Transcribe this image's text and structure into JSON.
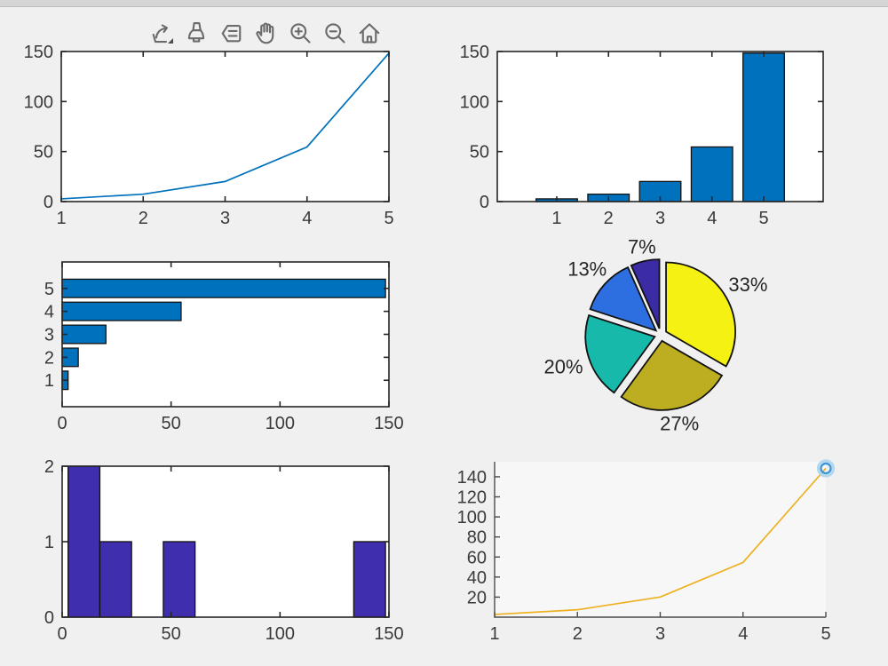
{
  "window": {
    "top_strip_color": "#d5d5d5",
    "background_color": "#f0f0f0"
  },
  "toolbar": {
    "icon_color": "#6b6b6b",
    "icons": [
      {
        "name": "export"
      },
      {
        "name": "brush"
      },
      {
        "name": "datatips"
      },
      {
        "name": "pan"
      },
      {
        "name": "zoom-in"
      },
      {
        "name": "zoom-out"
      },
      {
        "name": "restore-view"
      }
    ]
  },
  "chart_data": [
    {
      "id": "subplot-1",
      "type": "line",
      "x": [
        1,
        2,
        3,
        4,
        5
      ],
      "y": [
        2.72,
        7.39,
        20.09,
        54.6,
        148.41
      ],
      "xlim": [
        1,
        5
      ],
      "ylim": [
        0,
        150
      ],
      "xticks": [
        1,
        2,
        3,
        4,
        5
      ],
      "yticks": [
        0,
        50,
        100,
        150
      ],
      "line_color": "#0072BD",
      "grid": false,
      "box": true
    },
    {
      "id": "subplot-2",
      "type": "bar",
      "categories": [
        1,
        2,
        3,
        4,
        5
      ],
      "values": [
        2.72,
        7.39,
        20.09,
        54.6,
        148.41
      ],
      "xlim": [
        -0.15,
        6.15
      ],
      "ylim": [
        0,
        150
      ],
      "xticks": [
        1,
        2,
        3,
        4,
        5
      ],
      "yticks": [
        0,
        50,
        100,
        150
      ],
      "bar_width": 0.8,
      "bar_color": "#0072BD",
      "edge_color": "#111111",
      "grid": false,
      "box": true
    },
    {
      "id": "subplot-3",
      "type": "barh",
      "categories": [
        1,
        2,
        3,
        4,
        5
      ],
      "values": [
        2.72,
        7.39,
        20.09,
        54.6,
        148.41
      ],
      "xlim": [
        0,
        150
      ],
      "ylim": [
        -0.15,
        6.15
      ],
      "xticks": [
        0,
        50,
        100,
        150
      ],
      "yticks": [
        1,
        2,
        3,
        4,
        5
      ],
      "bar_height": 0.8,
      "bar_color": "#0072BD",
      "edge_color": "#111111",
      "grid": false,
      "box": true
    },
    {
      "id": "subplot-4",
      "type": "pie",
      "values": [
        1,
        2,
        3,
        4,
        5
      ],
      "labels": [
        "7%",
        "13%",
        "20%",
        "27%",
        "33%"
      ],
      "colors": [
        "#3b2ca6",
        "#2d6ee0",
        "#17b9ab",
        "#bcae20",
        "#f5f113"
      ],
      "edge_color": "#111111",
      "start_angle_deg": 90,
      "direction": "counterclockwise",
      "exploded": true
    },
    {
      "id": "subplot-5",
      "type": "histogram",
      "bars": [
        {
          "from": 2.72,
          "to": 17.29,
          "count": 2
        },
        {
          "from": 17.29,
          "to": 31.86,
          "count": 1
        },
        {
          "from": 46.43,
          "to": 61.0,
          "count": 1
        },
        {
          "from": 133.84,
          "to": 148.41,
          "count": 1
        }
      ],
      "xlim": [
        0,
        150
      ],
      "ylim": [
        0,
        2
      ],
      "xticks": [
        0,
        50,
        100,
        150
      ],
      "yticks": [
        0,
        1,
        2
      ],
      "bar_color": "#3f2eae",
      "edge_color": "#111111",
      "grid": false,
      "box": true
    },
    {
      "id": "subplot-6",
      "type": "line",
      "x": [
        1,
        2,
        3,
        4,
        5
      ],
      "y": [
        2.72,
        7.39,
        20.09,
        54.6,
        148.41
      ],
      "xlim": [
        1,
        5
      ],
      "ylim": [
        0,
        155
      ],
      "xticks": [
        1,
        2,
        3,
        4,
        5
      ],
      "yticks": [
        20,
        40,
        60,
        80,
        100,
        120,
        140
      ],
      "line_color": "#EDB120",
      "marker": {
        "x": 5,
        "y": 148.41,
        "shape": "circle",
        "color": "#3d97d6",
        "halo_color": "#b3d7ef"
      },
      "grid": false,
      "box": false
    }
  ]
}
